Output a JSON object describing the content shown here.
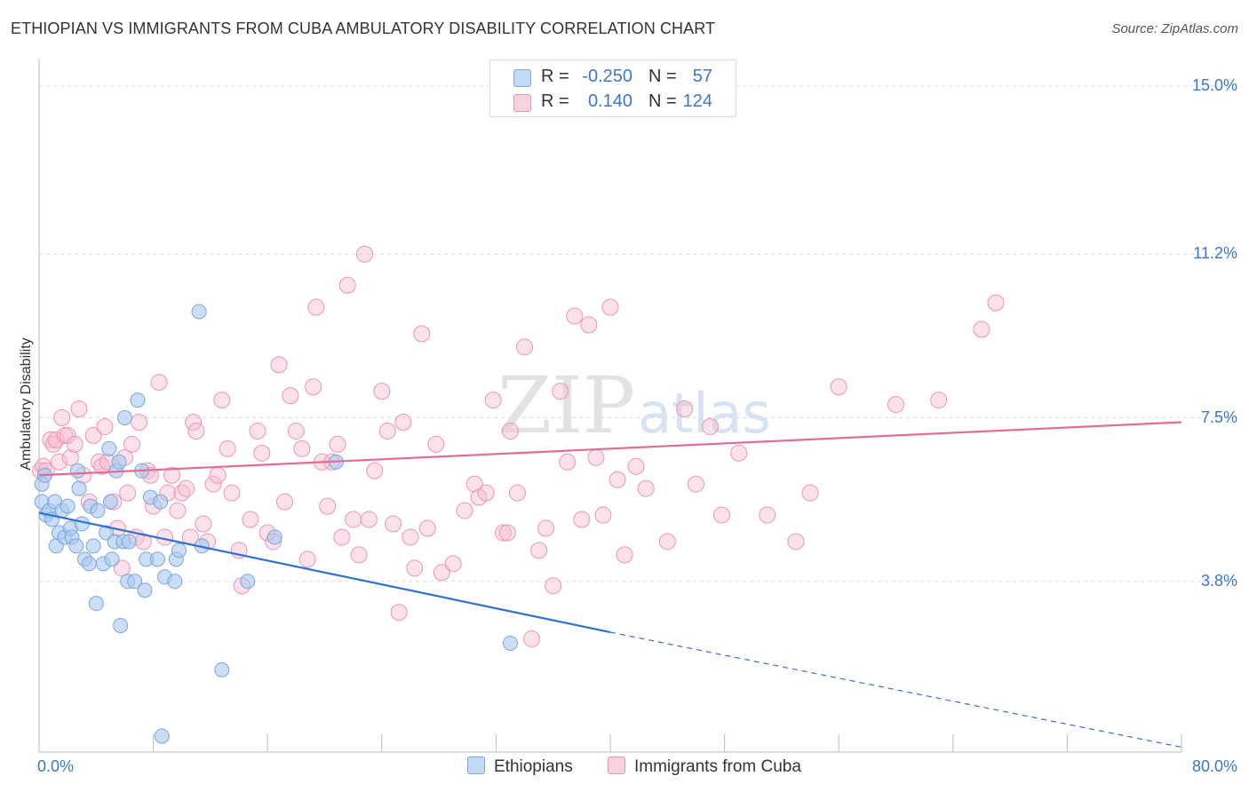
{
  "header": {
    "title": "ETHIOPIAN VS IMMIGRANTS FROM CUBA AMBULATORY DISABILITY CORRELATION CHART",
    "source": "Source: ZipAtlas.com"
  },
  "watermark": {
    "zip": "ZIP",
    "atlas": "atlas"
  },
  "legend": {
    "rows": [
      {
        "r_label": "R =",
        "r_value": "-0.250",
        "n_label": "N =",
        "n_value": "57"
      },
      {
        "r_label": "R =",
        "r_value": "0.140",
        "n_label": "N =",
        "n_value": "124"
      }
    ]
  },
  "chart_data": {
    "type": "scatter",
    "title": "ETHIOPIAN VS IMMIGRANTS FROM CUBA AMBULATORY DISABILITY CORRELATION CHART",
    "xlabel": "",
    "ylabel": "Ambulatory Disability",
    "xlim": [
      0,
      80
    ],
    "ylim": [
      0,
      15.5
    ],
    "x_tick_labels": [
      "0.0%",
      "80.0%"
    ],
    "y_ticks": [
      {
        "value": 3.8,
        "label": "3.8%"
      },
      {
        "value": 7.5,
        "label": "7.5%"
      },
      {
        "value": 11.2,
        "label": "11.2%"
      },
      {
        "value": 15.0,
        "label": "15.0%"
      }
    ],
    "grid": "horizontal dashed",
    "legend_position": "top-center",
    "colors": {
      "ethiopians": "#a9c8f0",
      "ethiopians_edge": "#7aa6de",
      "ethiopians_line": "#2f72d0",
      "cuba": "#f6bdd0",
      "cuba_edge": "#ec94b3",
      "cuba_line": "#e36b96"
    },
    "series": [
      {
        "name": "Ethiopians",
        "color": "#a9c8f0",
        "trend": {
          "x0": 0,
          "y0": 5.35,
          "x1": 40,
          "y1": 2.65,
          "dashed_to_x": 80,
          "dashed_to_y": 0.05
        },
        "points": [
          [
            0.2,
            6.0
          ],
          [
            0.2,
            5.6
          ],
          [
            0.4,
            6.2
          ],
          [
            0.5,
            5.3
          ],
          [
            0.7,
            5.4
          ],
          [
            0.9,
            5.2
          ],
          [
            1.1,
            5.6
          ],
          [
            1.2,
            4.6
          ],
          [
            1.4,
            4.9
          ],
          [
            1.6,
            5.4
          ],
          [
            1.8,
            4.8
          ],
          [
            2.0,
            5.5
          ],
          [
            2.2,
            5.0
          ],
          [
            2.3,
            4.8
          ],
          [
            2.6,
            4.6
          ],
          [
            2.7,
            6.3
          ],
          [
            2.8,
            5.9
          ],
          [
            3.0,
            5.1
          ],
          [
            3.2,
            4.3
          ],
          [
            3.5,
            4.2
          ],
          [
            3.6,
            5.5
          ],
          [
            3.8,
            4.6
          ],
          [
            4.0,
            3.3
          ],
          [
            4.1,
            5.4
          ],
          [
            4.5,
            4.2
          ],
          [
            4.7,
            4.9
          ],
          [
            4.9,
            6.8
          ],
          [
            5.0,
            5.6
          ],
          [
            5.1,
            4.3
          ],
          [
            5.3,
            4.7
          ],
          [
            5.4,
            6.3
          ],
          [
            5.6,
            6.5
          ],
          [
            5.7,
            2.8
          ],
          [
            5.9,
            4.7
          ],
          [
            6.2,
            3.8
          ],
          [
            6.3,
            4.7
          ],
          [
            6.7,
            3.8
          ],
          [
            6.9,
            7.9
          ],
          [
            7.2,
            6.3
          ],
          [
            7.4,
            3.6
          ],
          [
            7.5,
            4.3
          ],
          [
            7.8,
            5.7
          ],
          [
            8.3,
            4.3
          ],
          [
            8.5,
            5.6
          ],
          [
            8.6,
            0.3
          ],
          [
            8.8,
            3.9
          ],
          [
            9.5,
            3.8
          ],
          [
            9.6,
            4.3
          ],
          [
            9.8,
            4.5
          ],
          [
            11.2,
            9.9
          ],
          [
            11.4,
            4.6
          ],
          [
            12.8,
            1.8
          ],
          [
            14.6,
            3.8
          ],
          [
            16.5,
            4.8
          ],
          [
            20.8,
            6.5
          ],
          [
            33.0,
            2.4
          ],
          [
            6.0,
            7.5
          ]
        ]
      },
      {
        "name": "Immigrants from Cuba",
        "color": "#f6bdd0",
        "trend": {
          "x0": 0,
          "y0": 6.2,
          "x1": 80,
          "y1": 7.4
        },
        "points": [
          [
            0.1,
            6.3
          ],
          [
            0.3,
            6.4
          ],
          [
            0.5,
            6.3
          ],
          [
            0.8,
            7.0
          ],
          [
            1.0,
            6.9
          ],
          [
            1.2,
            7.0
          ],
          [
            1.4,
            6.5
          ],
          [
            1.6,
            7.5
          ],
          [
            1.8,
            7.1
          ],
          [
            2.0,
            7.1
          ],
          [
            2.2,
            6.6
          ],
          [
            2.5,
            6.9
          ],
          [
            2.8,
            7.7
          ],
          [
            3.1,
            6.2
          ],
          [
            3.5,
            5.6
          ],
          [
            3.8,
            7.1
          ],
          [
            4.2,
            6.5
          ],
          [
            4.4,
            6.4
          ],
          [
            4.6,
            7.3
          ],
          [
            4.8,
            6.5
          ],
          [
            5.2,
            5.6
          ],
          [
            5.5,
            5.0
          ],
          [
            5.8,
            4.1
          ],
          [
            6.0,
            6.6
          ],
          [
            6.2,
            5.8
          ],
          [
            6.5,
            6.9
          ],
          [
            6.8,
            4.8
          ],
          [
            7.0,
            7.4
          ],
          [
            7.3,
            4.7
          ],
          [
            7.6,
            6.3
          ],
          [
            7.8,
            6.2
          ],
          [
            8.0,
            5.5
          ],
          [
            8.4,
            8.3
          ],
          [
            8.8,
            4.8
          ],
          [
            9.0,
            5.8
          ],
          [
            9.3,
            6.2
          ],
          [
            9.7,
            5.4
          ],
          [
            10.0,
            5.8
          ],
          [
            10.3,
            5.9
          ],
          [
            10.6,
            4.8
          ],
          [
            10.8,
            7.4
          ],
          [
            11.0,
            7.2
          ],
          [
            11.5,
            5.1
          ],
          [
            11.8,
            4.7
          ],
          [
            12.2,
            6.0
          ],
          [
            12.5,
            6.2
          ],
          [
            12.8,
            7.9
          ],
          [
            13.2,
            6.8
          ],
          [
            13.5,
            5.8
          ],
          [
            14.0,
            4.5
          ],
          [
            14.2,
            3.7
          ],
          [
            14.8,
            5.2
          ],
          [
            15.3,
            7.2
          ],
          [
            15.6,
            6.7
          ],
          [
            16.0,
            4.9
          ],
          [
            16.4,
            4.7
          ],
          [
            16.8,
            8.7
          ],
          [
            17.2,
            5.6
          ],
          [
            17.6,
            8.0
          ],
          [
            18.0,
            7.2
          ],
          [
            18.4,
            6.8
          ],
          [
            18.8,
            4.3
          ],
          [
            19.2,
            8.2
          ],
          [
            19.4,
            10.0
          ],
          [
            19.8,
            6.5
          ],
          [
            20.2,
            5.5
          ],
          [
            20.5,
            6.5
          ],
          [
            20.9,
            6.9
          ],
          [
            21.2,
            4.8
          ],
          [
            21.6,
            10.5
          ],
          [
            22.0,
            5.2
          ],
          [
            22.4,
            4.4
          ],
          [
            22.8,
            11.2
          ],
          [
            23.1,
            5.2
          ],
          [
            23.5,
            6.3
          ],
          [
            24.0,
            8.1
          ],
          [
            24.4,
            7.2
          ],
          [
            24.8,
            5.1
          ],
          [
            25.2,
            3.1
          ],
          [
            25.5,
            7.4
          ],
          [
            26.0,
            4.8
          ],
          [
            26.3,
            4.1
          ],
          [
            26.8,
            9.4
          ],
          [
            27.2,
            5.0
          ],
          [
            27.8,
            6.9
          ],
          [
            28.2,
            4.0
          ],
          [
            29.0,
            4.2
          ],
          [
            29.8,
            5.4
          ],
          [
            30.5,
            6.0
          ],
          [
            30.8,
            5.7
          ],
          [
            31.3,
            5.8
          ],
          [
            31.8,
            7.9
          ],
          [
            32.5,
            4.9
          ],
          [
            33.0,
            7.2
          ],
          [
            33.5,
            5.8
          ],
          [
            34.0,
            9.1
          ],
          [
            34.5,
            2.5
          ],
          [
            35.0,
            4.5
          ],
          [
            35.5,
            5.0
          ],
          [
            36.0,
            3.7
          ],
          [
            36.5,
            8.1
          ],
          [
            37.0,
            6.5
          ],
          [
            37.5,
            9.8
          ],
          [
            38.0,
            5.2
          ],
          [
            38.5,
            9.6
          ],
          [
            39.0,
            6.6
          ],
          [
            39.5,
            5.3
          ],
          [
            40.0,
            10.0
          ],
          [
            40.5,
            6.1
          ],
          [
            41.0,
            4.4
          ],
          [
            41.8,
            6.4
          ],
          [
            42.5,
            5.9
          ],
          [
            44.0,
            4.7
          ],
          [
            45.2,
            7.7
          ],
          [
            46.0,
            6.0
          ],
          [
            47.0,
            7.3
          ],
          [
            47.8,
            5.3
          ],
          [
            49.0,
            6.7
          ],
          [
            51.0,
            5.3
          ],
          [
            53.0,
            4.7
          ],
          [
            54.0,
            5.8
          ],
          [
            56.0,
            8.2
          ],
          [
            60.0,
            7.8
          ],
          [
            63.0,
            7.9
          ],
          [
            66.0,
            9.5
          ],
          [
            67.0,
            10.1
          ],
          [
            32.8,
            4.9
          ]
        ]
      }
    ]
  },
  "bottom_legend": {
    "items": [
      {
        "label": "Ethiopians",
        "color": "#a9c8f0"
      },
      {
        "label": "Immigrants from Cuba",
        "color": "#f6bdd0"
      }
    ]
  }
}
